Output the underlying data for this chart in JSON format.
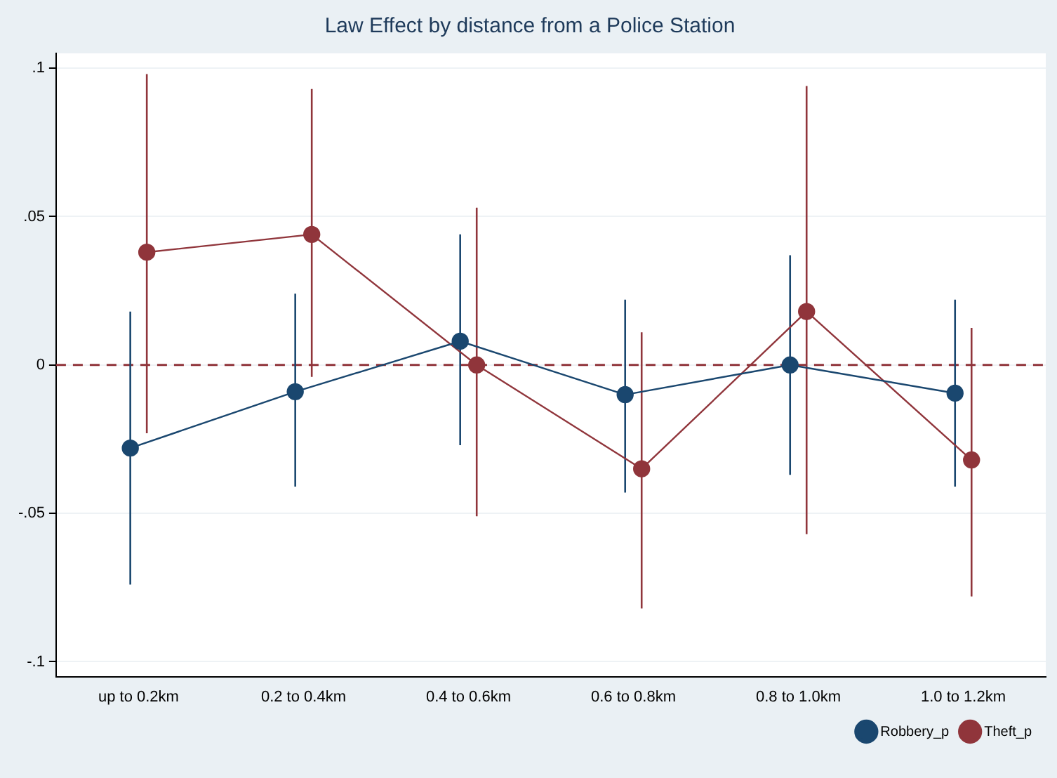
{
  "chart_data": {
    "type": "line",
    "title": "Law Effect by distance from a Police Station",
    "categories": [
      "up to 0.2km",
      "0.2 to 0.4km",
      "0.4 to 0.6km",
      "0.6 to 0.8km",
      "0.8 to 1.0km",
      "1.0 to 1.2km"
    ],
    "series": [
      {
        "name": "Robbery_p",
        "color": "#1a476f",
        "values": [
          -0.028,
          -0.009,
          0.008,
          -0.01,
          0.0,
          -0.0095
        ],
        "errors": [
          [
            -0.074,
            0.018
          ],
          [
            -0.041,
            0.024
          ],
          [
            -0.027,
            0.044
          ],
          [
            -0.043,
            0.022
          ],
          [
            -0.037,
            0.037
          ],
          [
            -0.041,
            0.022
          ]
        ]
      },
      {
        "name": "Theft_p",
        "color": "#90353b",
        "values": [
          0.038,
          0.044,
          0.0,
          -0.035,
          0.018,
          -0.032
        ],
        "errors": [
          [
            -0.023,
            0.098
          ],
          [
            -0.004,
            0.093
          ],
          [
            -0.051,
            0.053
          ],
          [
            -0.082,
            0.011
          ],
          [
            -0.057,
            0.094
          ],
          [
            -0.078,
            0.0125
          ]
        ]
      }
    ],
    "ylim": [
      -0.105,
      0.105
    ],
    "yticks": [
      {
        "value": -0.1,
        "label": "-.1"
      },
      {
        "value": -0.05,
        "label": "-.05"
      },
      0,
      {
        "value": 0.05,
        "label": ".05"
      },
      {
        "value": 0.1,
        "label": ".1"
      }
    ],
    "ref_lines": [
      {
        "axis": "y",
        "value": 0,
        "color": "#90353b",
        "line_style": "dashed"
      }
    ],
    "grid": "y",
    "legend": "bottom right",
    "marker": "circle",
    "line_style": "solid"
  }
}
